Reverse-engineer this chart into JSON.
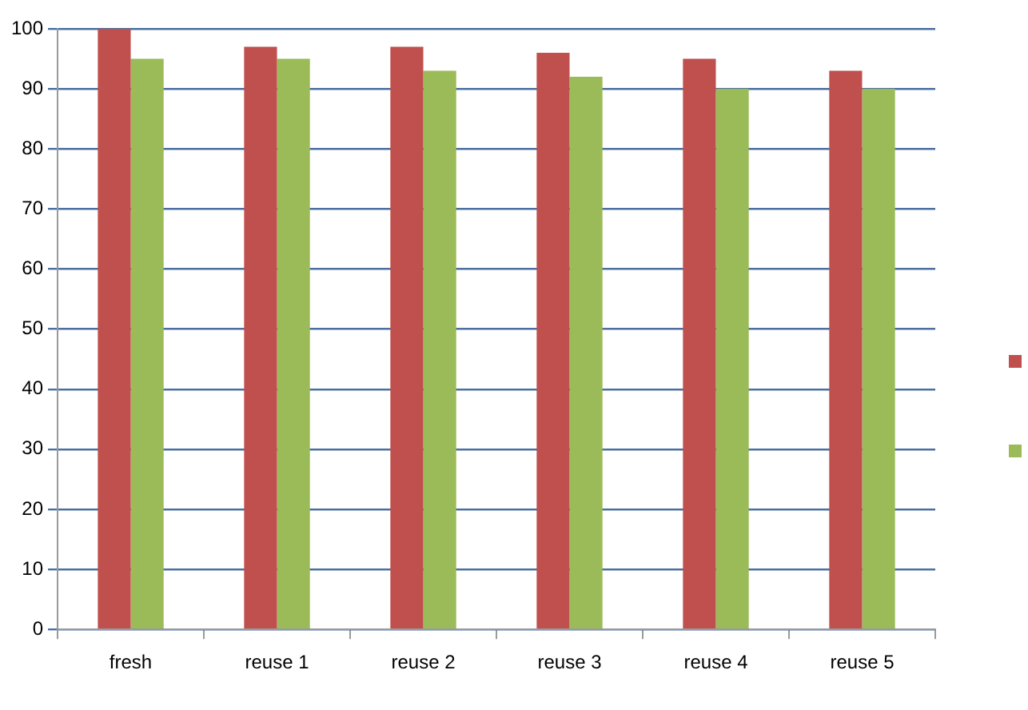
{
  "chart_data": {
    "type": "bar",
    "categories": [
      "fresh",
      "reuse 1",
      "reuse 2",
      "reuse 3",
      "reuse 4",
      "reuse 5"
    ],
    "series": [
      {
        "color": "#c0504d",
        "values": [
          100,
          97,
          97,
          96,
          95,
          93
        ]
      },
      {
        "color": "#9bbb59",
        "values": [
          95,
          95,
          93,
          92,
          90,
          90
        ]
      }
    ],
    "ylim": [
      0,
      100
    ],
    "yticks": [
      0,
      10,
      20,
      30,
      40,
      50,
      60,
      70,
      80,
      90,
      100
    ],
    "grid": "y"
  }
}
